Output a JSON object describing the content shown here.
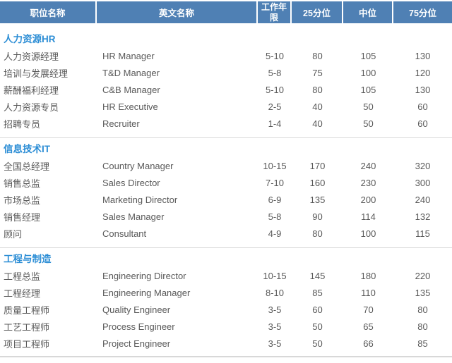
{
  "table": {
    "headers": [
      "职位名称",
      "英文名称",
      "工作年限",
      "25分位",
      "中位",
      "75分位"
    ],
    "sections": [
      {
        "title": "人力资源HR",
        "rows": [
          {
            "position": "人力资源经理",
            "english": "HR Manager",
            "years": "5-10",
            "p25": "80",
            "median": "105",
            "p75": "130"
          },
          {
            "position": "培训与发展经理",
            "english": "T&D Manager",
            "years": "5-8",
            "p25": "75",
            "median": "100",
            "p75": "120"
          },
          {
            "position": "薪酬福利经理",
            "english": "C&B Manager",
            "years": "5-10",
            "p25": "80",
            "median": "105",
            "p75": "130"
          },
          {
            "position": "人力资源专员",
            "english": "HR Executive",
            "years": "2-5",
            "p25": "40",
            "median": "50",
            "p75": "60"
          },
          {
            "position": "招聘专员",
            "english": "Recruiter",
            "years": "1-4",
            "p25": "40",
            "median": "50",
            "p75": "60"
          }
        ]
      },
      {
        "title": "信息技术IT",
        "rows": [
          {
            "position": "全国总经理",
            "english": "Country Manager",
            "years": "10-15",
            "p25": "170",
            "median": "240",
            "p75": "320"
          },
          {
            "position": "销售总监",
            "english": "Sales Director",
            "years": "7-10",
            "p25": "160",
            "median": "230",
            "p75": "300"
          },
          {
            "position": "市场总监",
            "english": "Marketing Director",
            "years": "6-9",
            "p25": "135",
            "median": "200",
            "p75": "240"
          },
          {
            "position": "销售经理",
            "english": "Sales Manager",
            "years": "5-8",
            "p25": "90",
            "median": "114",
            "p75": "132"
          },
          {
            "position": "顾问",
            "english": "Consultant",
            "years": "4-9",
            "p25": "80",
            "median": "100",
            "p75": "115"
          }
        ]
      },
      {
        "title": "工程与制造",
        "rows": [
          {
            "position": "工程总监",
            "english": "Engineering Director",
            "years": "10-15",
            "p25": "145",
            "median": "180",
            "p75": "220"
          },
          {
            "position": "工程经理",
            "english": "Engineering Manager",
            "years": "8-10",
            "p25": "85",
            "median": "110",
            "p75": "135"
          },
          {
            "position": "质量工程师",
            "english": "Quality Engineer",
            "years": "3-5",
            "p25": "60",
            "median": "70",
            "p75": "80"
          },
          {
            "position": "工艺工程师",
            "english": "Process Engineer",
            "years": "3-5",
            "p25": "50",
            "median": "65",
            "p75": "80"
          },
          {
            "position": "项目工程师",
            "english": "Project Engineer",
            "years": "3-5",
            "p25": "50",
            "median": "66",
            "p75": "85"
          }
        ]
      }
    ]
  },
  "colors": {
    "header_bg": "#4F80B4",
    "header_text": "#FFFFFF",
    "section_title": "#2B8DD5",
    "body_text": "#595959",
    "divider": "#D8D8D8"
  }
}
